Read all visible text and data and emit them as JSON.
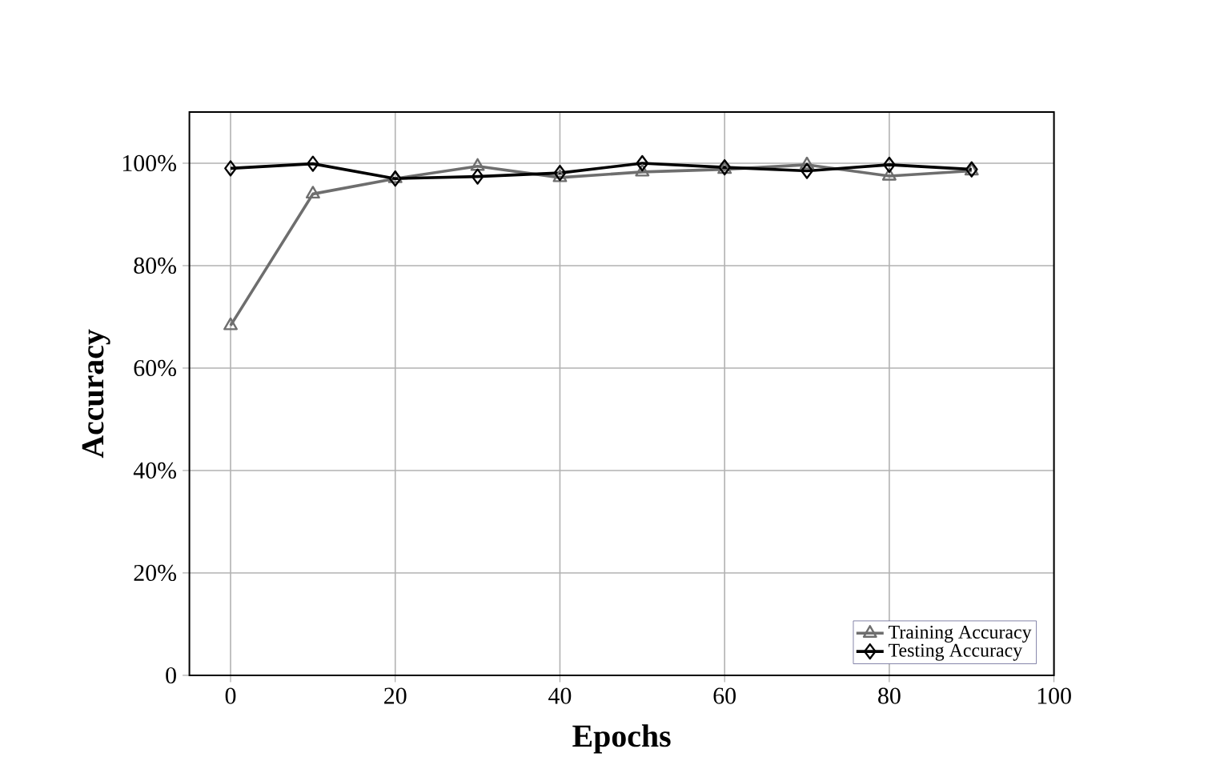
{
  "chart_data": {
    "type": "line",
    "xlabel": "Epochs",
    "ylabel": "Accuracy",
    "xlim": [
      -5,
      100
    ],
    "xticks": [
      0,
      20,
      40,
      60,
      80,
      100
    ],
    "ylim": [
      0,
      110
    ],
    "yticks": [
      0,
      {
        "value": 20,
        "label": "20%"
      },
      {
        "value": 40,
        "label": "40%"
      },
      {
        "value": 60,
        "label": "60%"
      },
      {
        "value": 80,
        "label": "80%"
      },
      {
        "value": 100,
        "label": "100%"
      }
    ],
    "grid": true,
    "legend": "bottom right",
    "series": [
      {
        "name": "Training Accuracy",
        "color": "#6e6e6e",
        "marker": "triangle",
        "x": [
          0,
          10,
          20,
          30,
          40,
          50,
          60,
          70,
          80,
          90
        ],
        "values": [
          68.3,
          94,
          97,
          99.4,
          97.2,
          98.3,
          98.8,
          99.7,
          97.5,
          98.5
        ]
      },
      {
        "name": "Testing Accuracy",
        "color": "#000000",
        "marker": "diamond",
        "x": [
          0,
          10,
          20,
          30,
          40,
          50,
          60,
          70,
          80,
          90
        ],
        "values": [
          99,
          99.9,
          97,
          97.4,
          98.1,
          100,
          99.2,
          98.5,
          99.7,
          98.8
        ]
      }
    ]
  }
}
